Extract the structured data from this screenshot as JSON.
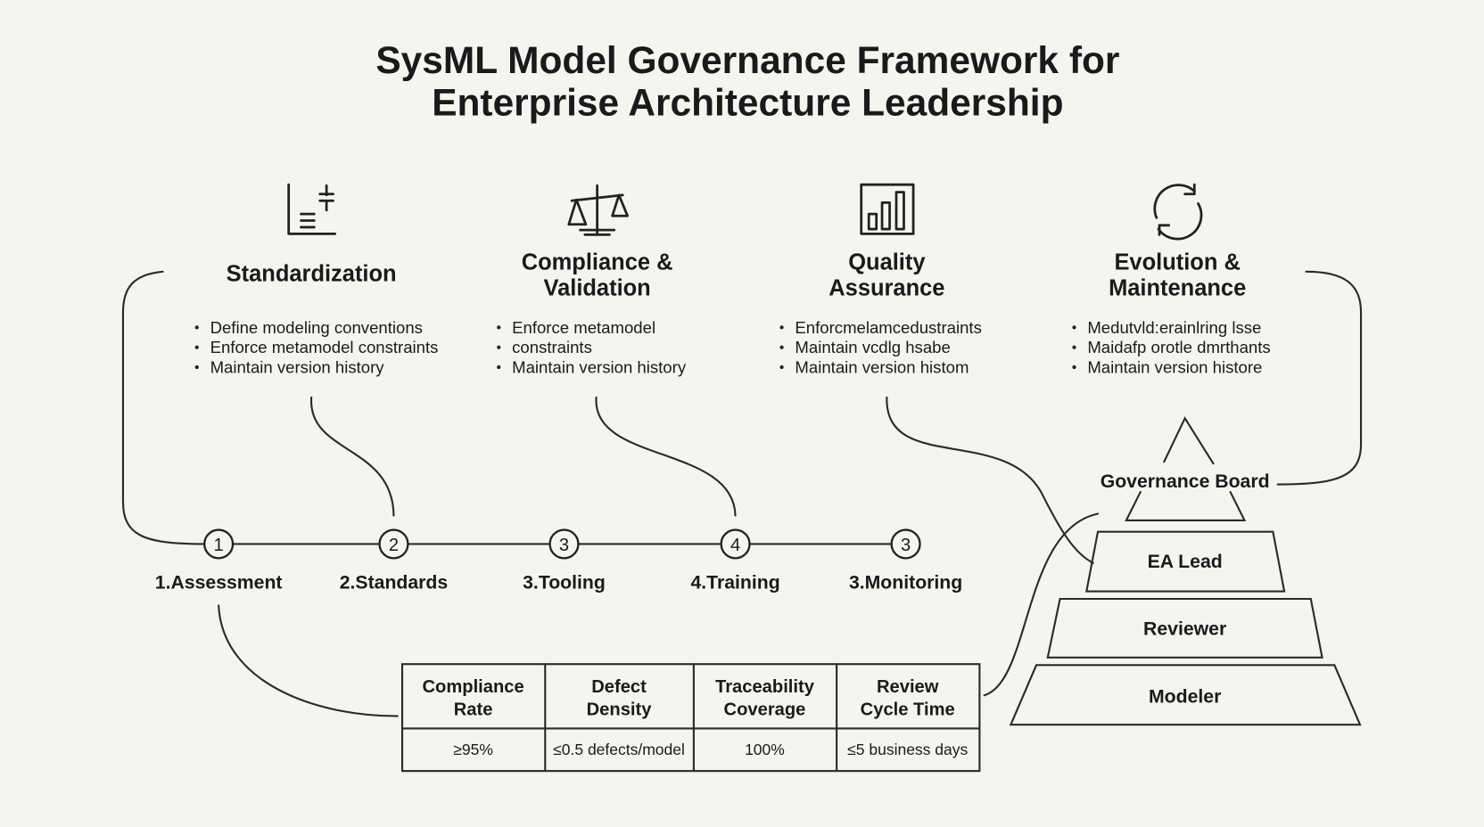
{
  "title": {
    "line1": "SysML Model Governance Framework for",
    "line2": "Enterprise Architecture Leadership"
  },
  "pillars": [
    {
      "icon": "document-list-icon",
      "heading": [
        "Standardization"
      ],
      "bullets": [
        "Define modeling conventions",
        "Enforce metamodel constraints",
        "Maintain version history"
      ]
    },
    {
      "icon": "scales-icon",
      "heading": [
        "Compliance &",
        "Validation"
      ],
      "bullets": [
        "Enforce metamodel",
        "constraints",
        "Maintain version history"
      ]
    },
    {
      "icon": "bar-chart-icon",
      "heading": [
        "Quality",
        "Assurance"
      ],
      "bullets": [
        "Enforcmelamcedustraints",
        "Maintain vcdlg hsabe",
        "Maintain version histom"
      ]
    },
    {
      "icon": "refresh-cycle-icon",
      "heading": [
        "Evolution &",
        "Maintenance"
      ],
      "bullets": [
        "Medutvld:erainlring lsse",
        "Maidafp orotle dmrthants",
        "Maintain version histore"
      ]
    }
  ],
  "timeline": [
    {
      "num": "1",
      "label": "1.Assessment"
    },
    {
      "num": "2",
      "label": "2.Standards"
    },
    {
      "num": "3",
      "label": "3.Tooling"
    },
    {
      "num": "4",
      "label": "4.Training"
    },
    {
      "num": "3",
      "label": "3.Monitoring"
    }
  ],
  "pyramid": {
    "top": "Governance Board",
    "tiers": [
      "EA Lead",
      "Reviewer",
      "Modeler"
    ]
  },
  "metrics_table": {
    "headers": [
      [
        "Compliance",
        "Rate"
      ],
      [
        "Defect",
        "Density"
      ],
      [
        "Traceability",
        "Coverage"
      ],
      [
        "Review",
        "Cycle Time"
      ]
    ],
    "values": [
      "≥95%",
      "≤0.5 defects/model",
      "100%",
      "≤5 business days"
    ]
  }
}
